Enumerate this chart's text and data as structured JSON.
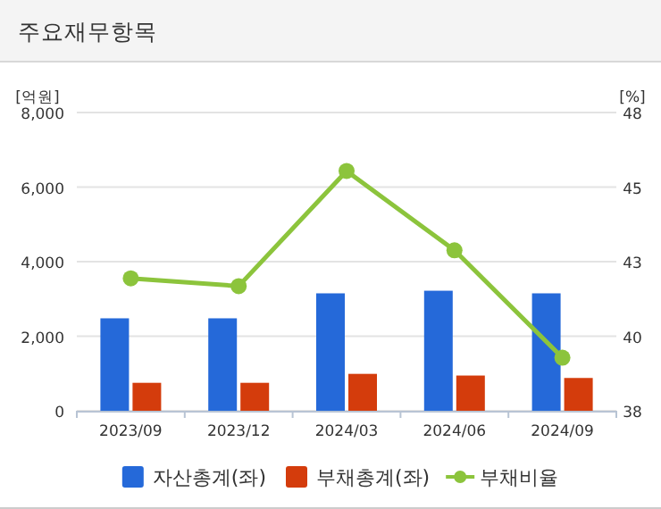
{
  "chart_data": {
    "type": "bar",
    "title": "주요재무항목",
    "ylabel": "[억원]",
    "y2label": "[%]",
    "categories": [
      "2023/09",
      "2023/12",
      "2024/03",
      "2024/06",
      "2024/09"
    ],
    "series": [
      {
        "name": "자산총계(좌)",
        "color": "#2569d9",
        "values": [
          2480,
          2480,
          3150,
          3220,
          3150
        ]
      },
      {
        "name": "부채총계(좌)",
        "color": "#d43c0c",
        "values": [
          750,
          750,
          990,
          945,
          880
        ]
      },
      {
        "name": "부채비율",
        "type": "line",
        "axis": "y2",
        "color": "#8cc43c",
        "values": [
          42.44,
          42.18,
          46.04,
          43.38,
          39.78
        ]
      }
    ],
    "ylim": [
      0,
      8000
    ],
    "yticks": [
      {
        "value": 0,
        "label": "0"
      },
      {
        "value": 2000,
        "label": "2,000"
      },
      {
        "value": 4000,
        "label": "4,000"
      },
      {
        "value": 6000,
        "label": "6,000"
      },
      {
        "value": 8000,
        "label": "8,000"
      }
    ],
    "y2lim": [
      38,
      48
    ],
    "y2ticks": [
      {
        "value": 38,
        "label": "38"
      },
      {
        "value": 40.5,
        "label": "40"
      },
      {
        "value": 43,
        "label": "43"
      },
      {
        "value": 45.5,
        "label": "45"
      },
      {
        "value": 48,
        "label": "48"
      }
    ],
    "grid": "y",
    "legend": "bottom",
    "marker": "circle"
  }
}
